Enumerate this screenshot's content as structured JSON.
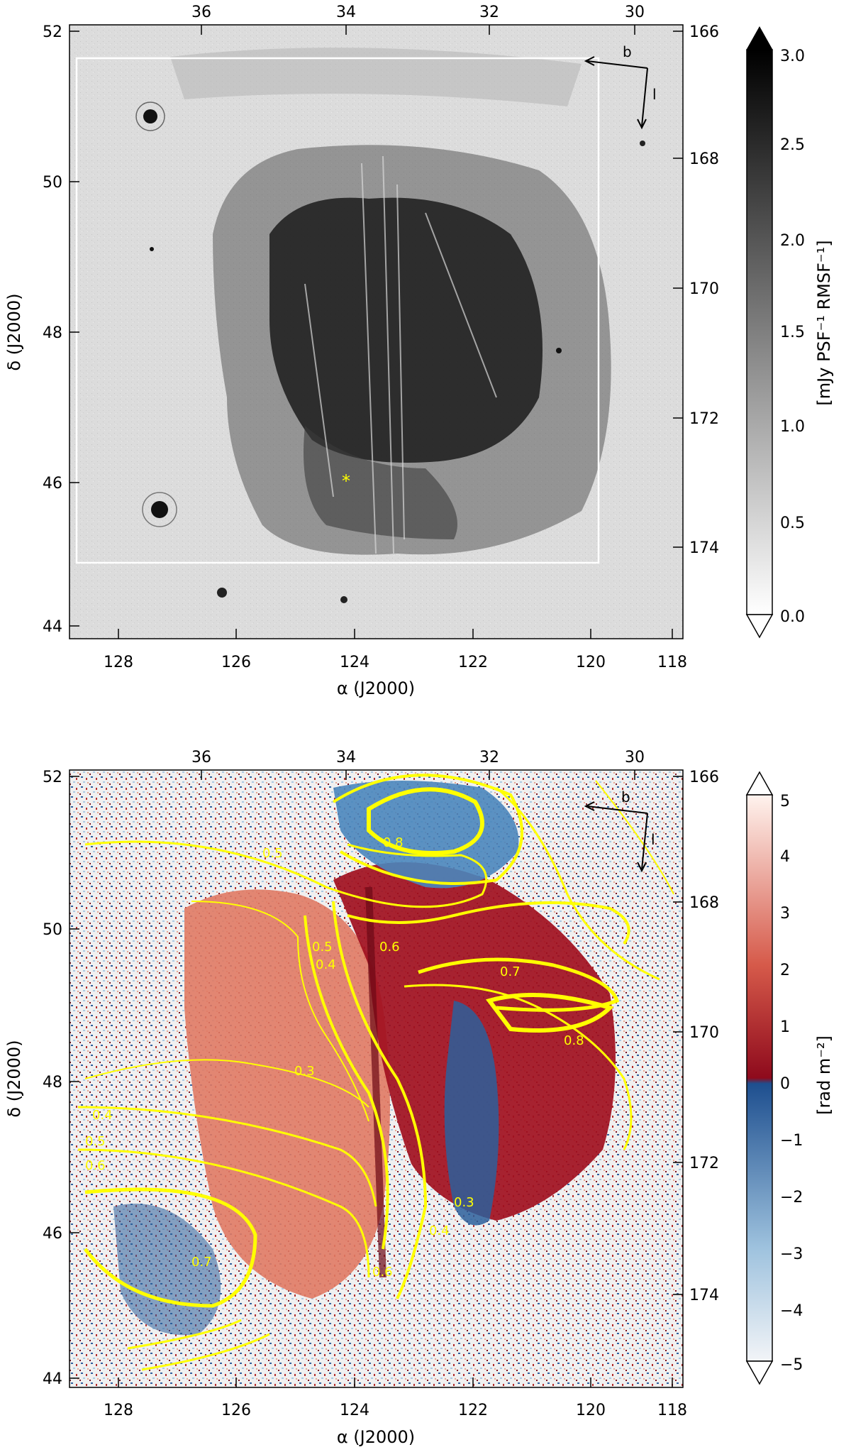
{
  "panel_top": {
    "x_ticks_bottom": [
      "128",
      "126",
      "124",
      "122",
      "120",
      "118"
    ],
    "x_ticks_top": [
      "36",
      "34",
      "32",
      "30"
    ],
    "y_ticks_left": [
      "52",
      "50",
      "48",
      "46",
      "44"
    ],
    "y_ticks_right": [
      "166",
      "168",
      "170",
      "172",
      "174"
    ],
    "xlabel": "α (J2000)",
    "ylabel": "δ (J2000)",
    "axis_arrow_b": "b",
    "axis_arrow_l": "l",
    "colorbar": {
      "ticks": [
        "3.0",
        "2.5",
        "2.0",
        "1.5",
        "1.0",
        "0.5",
        "0.0"
      ],
      "label": "[mJy PSF⁻¹ RMSF⁻¹]",
      "colors": {
        "low": "#ffffff",
        "high": "#000000"
      }
    },
    "marker_color": "#ffff00"
  },
  "panel_bottom": {
    "x_ticks_bottom": [
      "128",
      "126",
      "124",
      "122",
      "120",
      "118"
    ],
    "x_ticks_top": [
      "36",
      "34",
      "32",
      "30"
    ],
    "y_ticks_left": [
      "52",
      "50",
      "48",
      "46",
      "44"
    ],
    "y_ticks_right": [
      "166",
      "168",
      "170",
      "172",
      "174"
    ],
    "xlabel": "α (J2000)",
    "ylabel": "δ (J2000)",
    "axis_arrow_b": "b",
    "axis_arrow_l": "l",
    "contour_labels": [
      "0.5",
      "0.8",
      "0.6",
      "0.5",
      "0.4",
      "0.7",
      "0.8",
      "0.3",
      "0.4",
      "0.5",
      "0.6",
      "0.7",
      "0.4",
      "0.3",
      "0.6"
    ],
    "contour_color": "#ffff00",
    "colorbar": {
      "ticks": [
        "5",
        "4",
        "3",
        "2",
        "1",
        "0",
        "−1",
        "−2",
        "−3",
        "−4",
        "−5"
      ],
      "label": "[rad m⁻²]",
      "colors": {
        "max": "#fff3ee",
        "mid_pos": "#9e0b1e",
        "mid_neg": "#1e4f8f",
        "min": "#f2f4f7"
      }
    }
  }
}
